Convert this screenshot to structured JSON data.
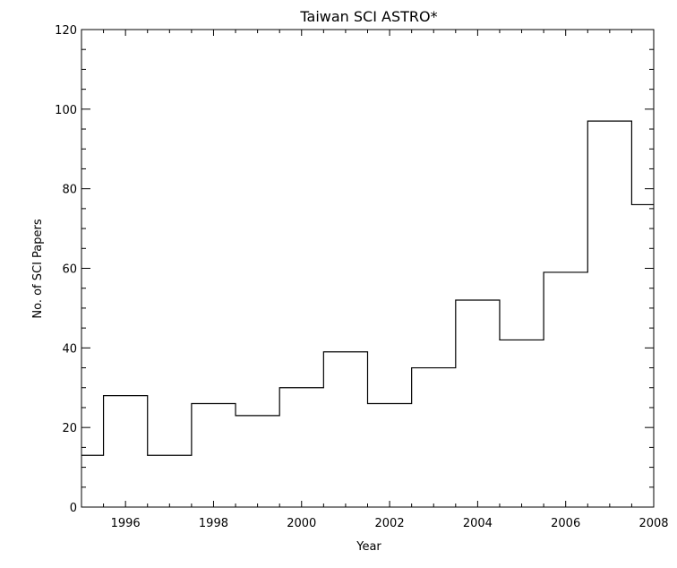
{
  "chart_data": {
    "type": "line",
    "step": "mid",
    "title": "Taiwan SCI ASTRO*",
    "xlabel": "Year",
    "ylabel": "No. of SCI Papers",
    "xlim": [
      1995,
      2008
    ],
    "ylim": [
      0,
      120
    ],
    "x_ticks": [
      1996,
      1998,
      2000,
      2002,
      2004,
      2006,
      2008
    ],
    "y_ticks": [
      0,
      20,
      40,
      60,
      80,
      100,
      120
    ],
    "x_tick_labels": [
      "1996",
      "1998",
      "2000",
      "2002",
      "2004",
      "2006",
      "2008"
    ],
    "y_tick_labels": [
      "0",
      "20",
      "40",
      "60",
      "80",
      "100",
      "120"
    ],
    "x": [
      1995,
      1996,
      1997,
      1998,
      1999,
      2000,
      2001,
      2002,
      2003,
      2004,
      2005,
      2006,
      2007,
      2008
    ],
    "y": [
      13,
      28,
      13,
      26,
      23,
      30,
      39,
      26,
      35,
      52,
      42,
      59,
      97,
      76
    ],
    "grid": false,
    "color": "#000000"
  }
}
